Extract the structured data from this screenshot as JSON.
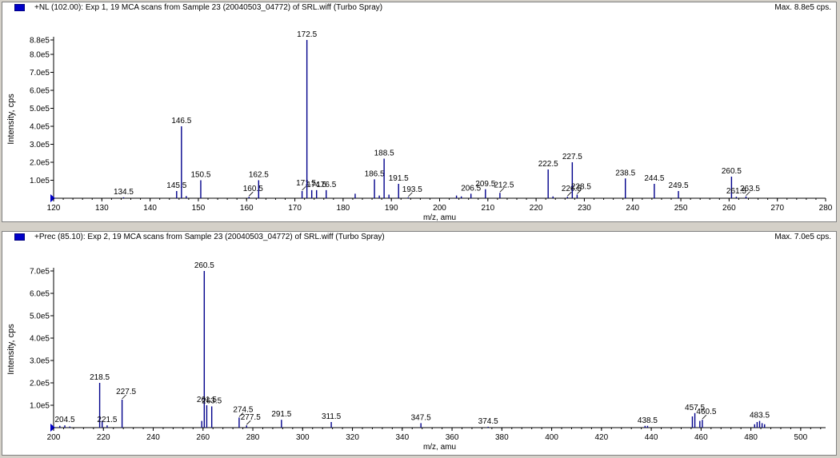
{
  "panels": [
    {
      "title": "+NL (102.00): Exp 1, 19 MCA scans from Sample 23 (20040503_04772) of SRL.wiff (Turbo Spray)",
      "max_label": "Max. 8.8e5 cps."
    },
    {
      "title": "+Prec (85.10): Exp 2, 19 MCA scans from Sample 23 (20040503_04772) of SRL.wiff (Turbo Spray)",
      "max_label": "Max. 7.0e5 cps."
    }
  ],
  "colors": {
    "peak": "#00008b",
    "axis": "#000000",
    "panel_bg": "#ffffff",
    "frame_bg": "#d4d0c8",
    "marker": "#0000c8"
  },
  "chart_data": [
    {
      "type": "bar",
      "xlabel": "m/z, amu",
      "ylabel": "Intensity, cps",
      "xlim": [
        120,
        280
      ],
      "ylim": [
        0,
        880000
      ],
      "xticks": [
        120,
        130,
        140,
        150,
        160,
        170,
        180,
        190,
        200,
        210,
        220,
        230,
        240,
        250,
        260,
        270,
        280
      ],
      "yticks": [
        {
          "value": 100000,
          "label": "1.0e5"
        },
        {
          "value": 200000,
          "label": "2.0e5"
        },
        {
          "value": 300000,
          "label": "3.0e5"
        },
        {
          "value": 400000,
          "label": "4.0e5"
        },
        {
          "value": 500000,
          "label": "5.0e5"
        },
        {
          "value": 600000,
          "label": "6.0e5"
        },
        {
          "value": 700000,
          "label": "7.0e5"
        },
        {
          "value": 800000,
          "label": "8.0e5"
        },
        {
          "value": 880000,
          "label": "8.8e5"
        }
      ],
      "peaks": [
        {
          "x": 134.5,
          "y": 5000,
          "label": "134.5"
        },
        {
          "x": 145.5,
          "y": 40000,
          "label": "145.5"
        },
        {
          "x": 146.5,
          "y": 400000,
          "label": "146.5"
        },
        {
          "x": 147.5,
          "y": 12000
        },
        {
          "x": 150.5,
          "y": 100000,
          "label": "150.5"
        },
        {
          "x": 160.5,
          "y": 8000,
          "label": "160.5",
          "leader": true
        },
        {
          "x": 162.5,
          "y": 100000,
          "label": "162.5"
        },
        {
          "x": 171.5,
          "y": 40000,
          "label": "171.5",
          "leader": true
        },
        {
          "x": 172.5,
          "y": 880000,
          "label": "172.5"
        },
        {
          "x": 173.5,
          "y": 45000
        },
        {
          "x": 174.5,
          "y": 45000,
          "label": "174.5"
        },
        {
          "x": 176.5,
          "y": 45000,
          "label": "176.5"
        },
        {
          "x": 182.5,
          "y": 25000
        },
        {
          "x": 186.5,
          "y": 105000,
          "label": "186.5"
        },
        {
          "x": 187.5,
          "y": 15000
        },
        {
          "x": 188.5,
          "y": 220000,
          "label": "188.5"
        },
        {
          "x": 189.5,
          "y": 20000
        },
        {
          "x": 191.5,
          "y": 80000,
          "label": "191.5"
        },
        {
          "x": 193.5,
          "y": 5000,
          "label": "193.5",
          "leader": true
        },
        {
          "x": 203.5,
          "y": 15000
        },
        {
          "x": 204.5,
          "y": 10000
        },
        {
          "x": 206.5,
          "y": 25000,
          "label": "206.5"
        },
        {
          "x": 209.5,
          "y": 50000,
          "label": "209.5"
        },
        {
          "x": 212.5,
          "y": 30000,
          "label": "212.5",
          "leader": true
        },
        {
          "x": 222.5,
          "y": 160000,
          "label": "222.5"
        },
        {
          "x": 223.5,
          "y": 10000
        },
        {
          "x": 226.5,
          "y": 8000,
          "label": "226.5",
          "leader": true
        },
        {
          "x": 227.5,
          "y": 200000,
          "label": "227.5"
        },
        {
          "x": 228.5,
          "y": 20000,
          "label": "228.5",
          "leader": true
        },
        {
          "x": 238.5,
          "y": 110000,
          "label": "238.5"
        },
        {
          "x": 244.5,
          "y": 80000,
          "label": "244.5"
        },
        {
          "x": 249.5,
          "y": 40000,
          "label": "249.5"
        },
        {
          "x": 260.5,
          "y": 120000,
          "label": "260.5"
        },
        {
          "x": 261.5,
          "y": 8000,
          "label": "261.5"
        },
        {
          "x": 263.5,
          "y": 10000,
          "label": "263.5",
          "leader": true
        }
      ]
    },
    {
      "type": "bar",
      "xlabel": "m/z, amu",
      "ylabel": "Intensity, cps",
      "xlim": [
        200,
        510
      ],
      "ylim": [
        0,
        700000
      ],
      "xticks": [
        200,
        220,
        240,
        260,
        280,
        300,
        320,
        340,
        360,
        380,
        400,
        420,
        440,
        460,
        480,
        500
      ],
      "yticks": [
        {
          "value": 100000,
          "label": "1.0e5"
        },
        {
          "value": 200000,
          "label": "2.0e5"
        },
        {
          "value": 300000,
          "label": "3.0e5"
        },
        {
          "value": 400000,
          "label": "4.0e5"
        },
        {
          "value": 500000,
          "label": "5.0e5"
        },
        {
          "value": 600000,
          "label": "6.0e5"
        },
        {
          "value": 700000,
          "label": "7.0e5"
        }
      ],
      "peaks": [
        {
          "x": 202.5,
          "y": 8000
        },
        {
          "x": 204.5,
          "y": 10000,
          "label": "204.5"
        },
        {
          "x": 206.5,
          "y": 5000
        },
        {
          "x": 218.5,
          "y": 200000,
          "label": "218.5"
        },
        {
          "x": 219.5,
          "y": 30000
        },
        {
          "x": 221.5,
          "y": 10000,
          "label": "221.5"
        },
        {
          "x": 227.5,
          "y": 125000,
          "label": "227.5",
          "leader": true
        },
        {
          "x": 259.5,
          "y": 30000
        },
        {
          "x": 260.5,
          "y": 700000,
          "label": "260.5"
        },
        {
          "x": 261.5,
          "y": 100000,
          "label": "261.5"
        },
        {
          "x": 263.5,
          "y": 95000,
          "label": "263.5"
        },
        {
          "x": 274.5,
          "y": 45000,
          "label": "274.5",
          "leader": true
        },
        {
          "x": 277.5,
          "y": 10000,
          "label": "277.5",
          "leader": true
        },
        {
          "x": 291.5,
          "y": 35000,
          "label": "291.5"
        },
        {
          "x": 311.5,
          "y": 25000,
          "label": "311.5"
        },
        {
          "x": 347.5,
          "y": 20000,
          "label": "347.5"
        },
        {
          "x": 374.5,
          "y": 4000,
          "label": "374.5"
        },
        {
          "x": 437.5,
          "y": 8000
        },
        {
          "x": 438.5,
          "y": 8000,
          "label": "438.5"
        },
        {
          "x": 456.5,
          "y": 50000
        },
        {
          "x": 457.5,
          "y": 65000,
          "label": "457.5"
        },
        {
          "x": 459.5,
          "y": 30000
        },
        {
          "x": 460.5,
          "y": 35000,
          "label": "460.5",
          "leader": true
        },
        {
          "x": 481.5,
          "y": 15000
        },
        {
          "x": 482.5,
          "y": 25000
        },
        {
          "x": 483.5,
          "y": 30000,
          "label": "483.5"
        },
        {
          "x": 484.5,
          "y": 20000
        },
        {
          "x": 485.5,
          "y": 15000
        }
      ]
    }
  ]
}
